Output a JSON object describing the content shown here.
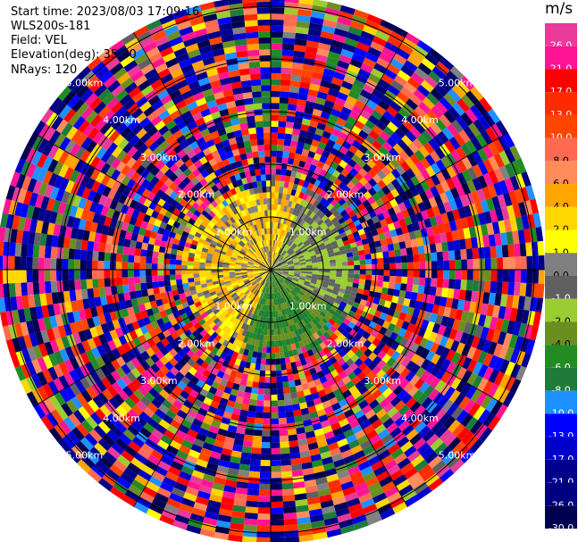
{
  "header": {
    "start_time": "Start time: 2023/08/03 17:09:16",
    "instrument": "WLS200s-181",
    "field": "Field: VEL",
    "elevation": "Elevation(deg): 35.30",
    "nrays": "NRays: 120"
  },
  "colorbar": {
    "unit": "m/s",
    "bins": [
      {
        "label": "26.0",
        "color": "#e83a9a"
      },
      {
        "label": "21.0",
        "color": "#ff1493"
      },
      {
        "label": "17.0",
        "color": "#ff0000"
      },
      {
        "label": "13.0",
        "color": "#ff2a00"
      },
      {
        "label": "10.0",
        "color": "#ff4500"
      },
      {
        "label": "8.0",
        "color": "#ff6a50"
      },
      {
        "label": "6.0",
        "color": "#ff8c5a"
      },
      {
        "label": "4.0",
        "color": "#ffa500"
      },
      {
        "label": "2.0",
        "color": "#ffd700"
      },
      {
        "label": "1.0",
        "color": "#ffff00"
      },
      {
        "label": "0.0",
        "color": "#808080"
      },
      {
        "label": "-1.0",
        "color": "#606060"
      },
      {
        "label": "-2.0",
        "color": "#9acd32"
      },
      {
        "label": "-4.0",
        "color": "#6b8e23"
      },
      {
        "label": "-6.0",
        "color": "#228b22"
      },
      {
        "label": "-8.0",
        "color": "#1e7b3a"
      },
      {
        "label": "-10.0",
        "color": "#1e90ff"
      },
      {
        "label": "-13.0",
        "color": "#0000ff"
      },
      {
        "label": "-17.0",
        "color": "#0000cd"
      },
      {
        "label": "-21.0",
        "color": "#00008b"
      },
      {
        "label": "-26.0",
        "color": "#000080"
      },
      {
        "label": "-30.0",
        "color": "#000050"
      }
    ]
  },
  "chart_data": {
    "type": "heatmap",
    "title": "Start time: 2023/08/03 17:09:16",
    "projection": "polar PPI",
    "n_rays": 120,
    "range_rings_km": [
      1.0,
      2.0,
      3.0,
      4.0,
      5.0
    ],
    "ring_labels": [
      "1.00km",
      "2.00km",
      "3.00km",
      "4.00km",
      "5.00km"
    ],
    "max_range_km": 5.2,
    "field": "VEL",
    "units": "m/s",
    "value_range": [
      -30.0,
      30.0
    ],
    "description_regions": [
      {
        "sector": "north-west near field (0-1.6 km)",
        "typical_velocity_ms": [
          1.0,
          6.0
        ]
      },
      {
        "sector": "south near field (0-1.0 km)",
        "typical_velocity_ms": [
          -8.0,
          -2.0
        ]
      },
      {
        "sector": "east near field (0-1.0 km)",
        "typical_velocity_ms": [
          -2.0,
          0.0
        ]
      },
      {
        "sector": "far field (>1.8 km)",
        "typical_velocity_ms": [
          -30.0,
          30.0
        ],
        "note": "noise"
      }
    ]
  }
}
